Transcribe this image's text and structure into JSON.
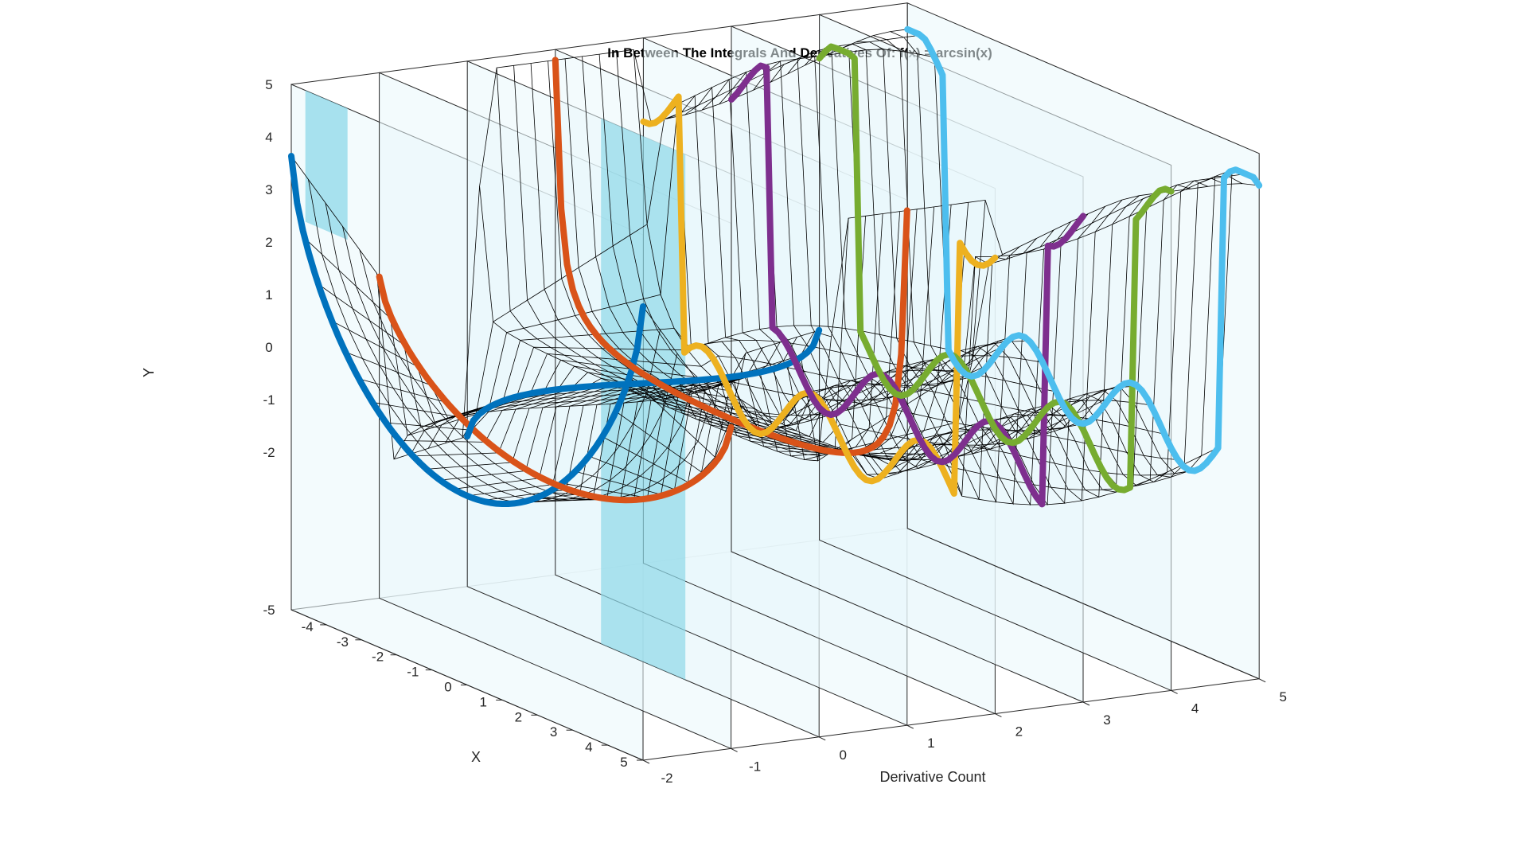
{
  "chart_data": {
    "type": "surface3d",
    "title": "In Between The Integrals And Derivatives Of: f(x) = arcsin(x)",
    "xlabel": "X",
    "ylabel": "Derivative Count",
    "zlabel": "Y",
    "x_ticks": [
      "-4",
      "-3",
      "-2",
      "-1",
      "0",
      "1",
      "2",
      "3",
      "4",
      "5"
    ],
    "derivative_ticks": [
      "-2",
      "-1",
      "0",
      "1",
      "2",
      "3",
      "4",
      "5"
    ],
    "y_ticks": [
      "-5",
      "-2",
      "-1",
      "0",
      "1",
      "2",
      "3",
      "4",
      "5"
    ],
    "xlim": [
      -5,
      5
    ],
    "derivative_lim": [
      -2,
      5
    ],
    "ylim": [
      -5,
      5
    ],
    "grid": false,
    "legend": "none",
    "integer_derivative_curves": [
      {
        "derivative": -2,
        "color": "#0072BD"
      },
      {
        "derivative": -1,
        "color": "#D95319"
      },
      {
        "derivative": 0,
        "color": "#0072BD"
      },
      {
        "derivative": 1,
        "color": "#D95319"
      },
      {
        "derivative": 2,
        "color": "#EDB120"
      },
      {
        "derivative": 3,
        "color": "#7E2F8E"
      },
      {
        "derivative": 4,
        "color": "#77AC30"
      },
      {
        "derivative": 5,
        "color": "#4DBEEE"
      }
    ],
    "colors": {
      "plane_fill": "#EAF7FB",
      "plane_highlight": "#8ED8E8",
      "mesh": "#000000"
    }
  }
}
